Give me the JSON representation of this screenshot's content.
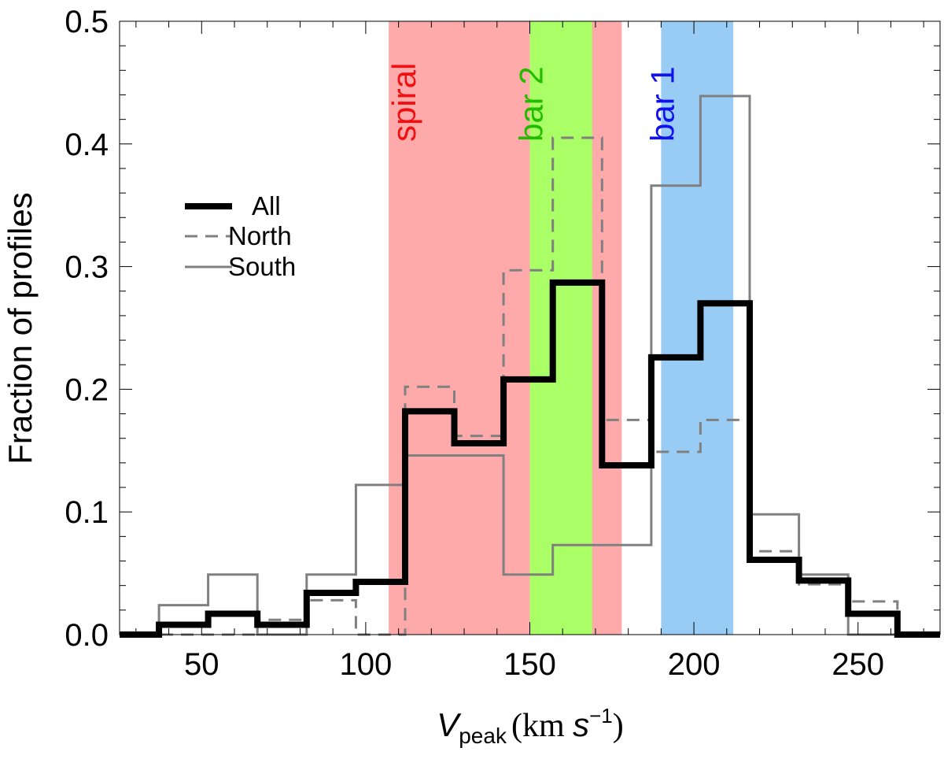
{
  "chart_data": {
    "type": "histogram-step",
    "title": "",
    "xlabel_main": "V",
    "xlabel_sub": "peak",
    "xlabel_units_open": "(km ",
    "xlabel_units_s": "s",
    "xlabel_units_exp": "−1",
    "xlabel_units_close": ")",
    "ylabel": "Fraction of profiles",
    "xlim": [
      25,
      275
    ],
    "ylim": [
      0,
      0.5
    ],
    "xticks": [
      50,
      100,
      150,
      200,
      250
    ],
    "xtick_labels": [
      "50",
      "100",
      "150",
      "200",
      "250"
    ],
    "yticks": [
      0.0,
      0.1,
      0.2,
      0.3,
      0.4,
      0.5
    ],
    "ytick_labels": [
      "0.0",
      "0.1",
      "0.2",
      "0.3",
      "0.4",
      "0.5"
    ],
    "bin_edges": [
      25,
      37,
      52,
      67,
      82,
      97,
      112,
      127,
      142,
      157,
      172,
      187,
      202,
      217,
      232,
      247,
      262,
      275
    ],
    "bands": [
      {
        "label": "spiral",
        "x0": 107,
        "x1": 178,
        "color": "#ffaaaa",
        "text_color": "#ee1111"
      },
      {
        "label": "bar 2",
        "x0": 150,
        "x1": 169,
        "color": "#aaff66",
        "text_color": "#22bb00"
      },
      {
        "label": "bar 1",
        "x0": 190,
        "x1": 212,
        "color": "#99ccf5",
        "text_color": "#1111ee"
      }
    ],
    "series": [
      {
        "name": "All",
        "style": "solid-thick",
        "color": "#000000",
        "values": [
          0.0,
          0.008,
          0.017,
          0.008,
          0.034,
          0.043,
          0.182,
          0.156,
          0.208,
          0.287,
          0.138,
          0.226,
          0.27,
          0.061,
          0.044,
          0.017,
          0.0
        ]
      },
      {
        "name": "North",
        "style": "dashed",
        "color": "#808080",
        "values": [
          0.0,
          0.0,
          0.0,
          0.012,
          0.028,
          0.0,
          0.202,
          0.162,
          0.297,
          0.405,
          0.175,
          0.149,
          0.175,
          0.068,
          0.041,
          0.027,
          0.0
        ]
      },
      {
        "name": "South",
        "style": "solid-thin",
        "color": "#808080",
        "values": [
          0.0,
          0.024,
          0.049,
          0.0,
          0.049,
          0.122,
          0.146,
          0.146,
          0.049,
          0.073,
          0.073,
          0.366,
          0.439,
          0.098,
          0.049,
          0.0,
          0.0
        ]
      }
    ],
    "legend": {
      "position": "upper-left",
      "entries": [
        "All",
        "North",
        "South"
      ]
    }
  }
}
